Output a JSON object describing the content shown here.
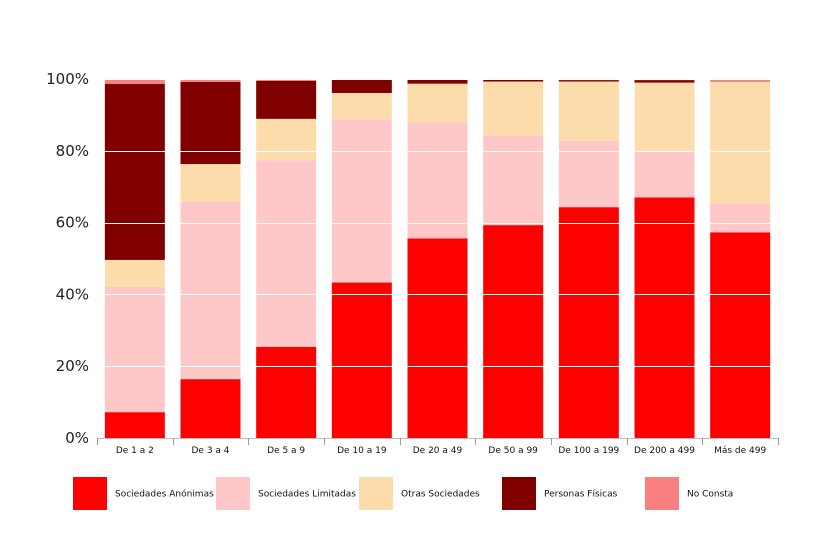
{
  "chart_data": {
    "type": "bar",
    "stacked": true,
    "categories": [
      "De 1 a 2",
      "De 3 a 4",
      "De 5 a 9",
      "De 10 a 19",
      "De 20 a 49",
      "De 50 a 99",
      "De 100 a 199",
      "De 200 a 499",
      "Más de 499"
    ],
    "series": [
      {
        "name": "Sociedades Anónimas",
        "color": "#ff0000",
        "values": [
          7.2,
          16.4,
          25.4,
          43.3,
          55.6,
          59.3,
          64.3,
          67.0,
          57.3
        ]
      },
      {
        "name": "Sociedades Limitadas",
        "color": "#ffc8c8",
        "values": [
          34.9,
          49.4,
          52.0,
          45.5,
          32.3,
          25.0,
          18.5,
          13.0,
          8.0
        ]
      },
      {
        "name": "Otras Sociedades",
        "color": "#fcdcaa",
        "values": [
          7.5,
          10.5,
          11.5,
          7.3,
          10.8,
          15.0,
          16.5,
          19.0,
          34.0
        ]
      },
      {
        "name": "Personas Físicas",
        "color": "#800000",
        "values": [
          49.0,
          22.9,
          10.6,
          3.9,
          1.3,
          0.5,
          0.4,
          0.7,
          0.1
        ]
      },
      {
        "name": "No Consta",
        "color": "#f88080",
        "values": [
          1.4,
          0.8,
          0.5,
          0.0,
          0.0,
          0.2,
          0.3,
          0.3,
          0.6
        ]
      }
    ],
    "yticks": [
      "0%",
      "20%",
      "40%",
      "60%",
      "80%",
      "100%"
    ],
    "ylim": [
      0,
      100
    ],
    "grid": true,
    "legend": "bottom",
    "title": "",
    "xlabel": "",
    "ylabel": ""
  }
}
